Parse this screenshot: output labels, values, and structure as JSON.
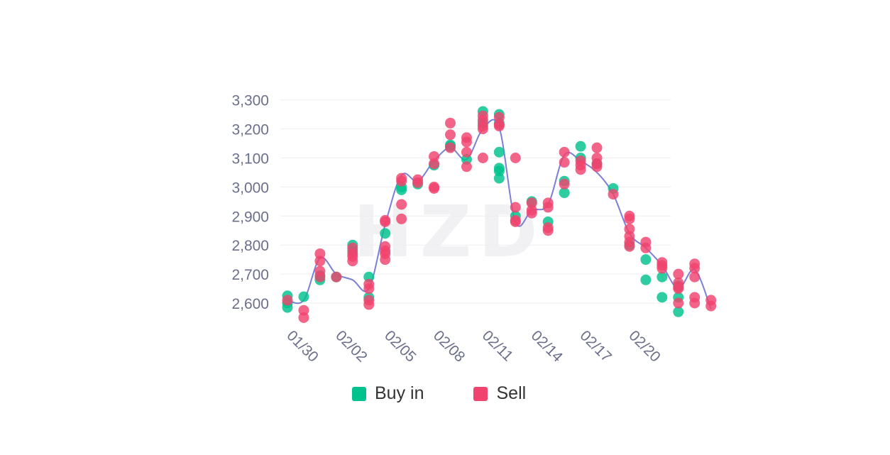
{
  "watermark": "HZD",
  "chart_data": {
    "type": "scatter",
    "ylim": [
      2560,
      3300
    ],
    "yticks": [
      2600,
      2700,
      2800,
      2900,
      3000,
      3100,
      3200,
      3300
    ],
    "ytick_labels": [
      "2,600",
      "2,700",
      "2,800",
      "2,900",
      "3,000",
      "3,100",
      "3,200",
      "3,300"
    ],
    "xticks": [
      0,
      3,
      6,
      9,
      12,
      15,
      18,
      21
    ],
    "xtick_labels": [
      "01/30",
      "02/02",
      "02/05",
      "02/08",
      "02/11",
      "02/14",
      "02/17",
      "02/20"
    ],
    "grid": true,
    "legend": "bottom-center",
    "series": [
      {
        "name": "Buy in",
        "color": "#00C28C",
        "points": [
          [
            0,
            2625
          ],
          [
            0,
            2585
          ],
          [
            0,
            2600
          ],
          [
            1,
            2622
          ],
          [
            2,
            2680
          ],
          [
            2,
            2695
          ],
          [
            3,
            2690
          ],
          [
            4,
            2800
          ],
          [
            4,
            2780
          ],
          [
            5,
            2690
          ],
          [
            5,
            2620
          ],
          [
            6,
            2840
          ],
          [
            7,
            2990
          ],
          [
            7,
            3000
          ],
          [
            8,
            3010
          ],
          [
            9,
            3075
          ],
          [
            10,
            3145
          ],
          [
            10,
            3140
          ],
          [
            11,
            3095
          ],
          [
            12,
            3260
          ],
          [
            12,
            3220
          ],
          [
            13,
            3250
          ],
          [
            13,
            3220
          ],
          [
            13,
            3120
          ],
          [
            13,
            3065
          ],
          [
            13,
            3055
          ],
          [
            13,
            3030
          ],
          [
            14,
            2900
          ],
          [
            15,
            2950
          ],
          [
            16,
            2880
          ],
          [
            17,
            3020
          ],
          [
            17,
            2980
          ],
          [
            18,
            3140
          ],
          [
            18,
            3100
          ],
          [
            19,
            3080
          ],
          [
            20,
            2995
          ],
          [
            21,
            2800
          ],
          [
            22,
            2750
          ],
          [
            22,
            2680
          ],
          [
            23,
            2690
          ],
          [
            23,
            2620
          ],
          [
            24,
            2660
          ],
          [
            24,
            2620
          ],
          [
            24,
            2570
          ]
        ]
      },
      {
        "name": "Sell",
        "color": "#F0436E",
        "points": [
          [
            0,
            2610
          ],
          [
            1,
            2575
          ],
          [
            1,
            2550
          ],
          [
            2,
            2770
          ],
          [
            2,
            2745
          ],
          [
            2,
            2710
          ],
          [
            2,
            2690
          ],
          [
            3,
            2690
          ],
          [
            4,
            2790
          ],
          [
            4,
            2770
          ],
          [
            4,
            2760
          ],
          [
            4,
            2745
          ],
          [
            5,
            2665
          ],
          [
            5,
            2650
          ],
          [
            5,
            2610
          ],
          [
            5,
            2595
          ],
          [
            6,
            2885
          ],
          [
            6,
            2880
          ],
          [
            6,
            2795
          ],
          [
            6,
            2780
          ],
          [
            6,
            2770
          ],
          [
            6,
            2750
          ],
          [
            7,
            3030
          ],
          [
            7,
            3020
          ],
          [
            7,
            2940
          ],
          [
            7,
            2890
          ],
          [
            8,
            3015
          ],
          [
            8,
            3025
          ],
          [
            9,
            3105
          ],
          [
            9,
            3080
          ],
          [
            9,
            3000
          ],
          [
            9,
            2995
          ],
          [
            10,
            3220
          ],
          [
            10,
            3180
          ],
          [
            10,
            3135
          ],
          [
            11,
            3170
          ],
          [
            11,
            3155
          ],
          [
            11,
            3120
          ],
          [
            11,
            3070
          ],
          [
            12,
            3245
          ],
          [
            12,
            3230
          ],
          [
            12,
            3210
          ],
          [
            12,
            3200
          ],
          [
            12,
            3100
          ],
          [
            13,
            3240
          ],
          [
            13,
            3215
          ],
          [
            13,
            3210
          ],
          [
            14,
            3100
          ],
          [
            14,
            2930
          ],
          [
            14,
            2885
          ],
          [
            14,
            2880
          ],
          [
            15,
            2945
          ],
          [
            15,
            2920
          ],
          [
            15,
            2910
          ],
          [
            16,
            2945
          ],
          [
            16,
            2930
          ],
          [
            16,
            2860
          ],
          [
            16,
            2850
          ],
          [
            17,
            3120
          ],
          [
            17,
            3085
          ],
          [
            17,
            3010
          ],
          [
            18,
            3090
          ],
          [
            18,
            3075
          ],
          [
            18,
            3060
          ],
          [
            19,
            3135
          ],
          [
            19,
            3100
          ],
          [
            19,
            3080
          ],
          [
            19,
            3070
          ],
          [
            20,
            2975
          ],
          [
            21,
            2900
          ],
          [
            21,
            2890
          ],
          [
            21,
            2855
          ],
          [
            21,
            2830
          ],
          [
            21,
            2810
          ],
          [
            21,
            2795
          ],
          [
            22,
            2810
          ],
          [
            22,
            2790
          ],
          [
            23,
            2740
          ],
          [
            23,
            2730
          ],
          [
            23,
            2720
          ],
          [
            24,
            2700
          ],
          [
            24,
            2670
          ],
          [
            24,
            2655
          ],
          [
            24,
            2650
          ],
          [
            24,
            2600
          ],
          [
            25,
            2735
          ],
          [
            25,
            2720
          ],
          [
            25,
            2690
          ],
          [
            25,
            2620
          ],
          [
            25,
            2600
          ],
          [
            26,
            2610
          ],
          [
            26,
            2590
          ]
        ]
      }
    ],
    "trend_line": {
      "color": "#7B7FD6",
      "x": [
        0,
        1,
        2,
        3,
        4,
        5,
        6,
        7,
        8,
        9,
        10,
        11,
        12,
        13,
        14,
        15,
        16,
        17,
        18,
        19,
        20,
        21,
        22,
        23,
        24,
        25,
        26
      ],
      "y": [
        2610,
        2610,
        2755,
        2700,
        2680,
        2650,
        2870,
        3040,
        3020,
        3090,
        3135,
        3095,
        3200,
        3205,
        2880,
        2920,
        2940,
        3110,
        3090,
        3050,
        2975,
        2840,
        2790,
        2730,
        2650,
        2715,
        2580
      ]
    }
  },
  "legend": {
    "buy_label": "Buy in",
    "sell_label": "Sell"
  }
}
